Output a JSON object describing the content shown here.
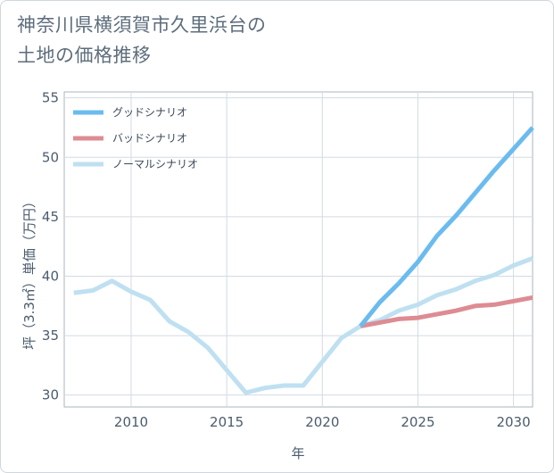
{
  "title_lines": [
    "神奈川県横須賀市久里浜台の",
    "土地の価格推移"
  ],
  "chart_data": {
    "type": "line",
    "title": "神奈川県横須賀市久里浜台の土地の価格推移",
    "xlabel": "年",
    "ylabel": "坪（3.3㎡）単価（万円）",
    "xlim": [
      2006.5,
      2031
    ],
    "ylim": [
      29,
      55.5
    ],
    "xticks": [
      2010,
      2015,
      2020,
      2025,
      2030
    ],
    "yticks": [
      30,
      35,
      40,
      45,
      50,
      55
    ],
    "grid": true,
    "legend_position": "top-left",
    "series": [
      {
        "name": "グッドシナリオ",
        "color": "#6bbbef",
        "x": [
          2022,
          2023,
          2024,
          2025,
          2026,
          2027,
          2028,
          2029,
          2030,
          2031
        ],
        "y": [
          35.8,
          37.8,
          39.4,
          41.2,
          43.4,
          45.1,
          47.0,
          48.9,
          50.7,
          52.5
        ]
      },
      {
        "name": "バッドシナリオ",
        "color": "#dd8c93",
        "x": [
          2022,
          2023,
          2024,
          2025,
          2026,
          2027,
          2028,
          2029,
          2030,
          2031
        ],
        "y": [
          35.8,
          36.1,
          36.4,
          36.5,
          36.8,
          37.1,
          37.5,
          37.6,
          37.9,
          38.2
        ]
      },
      {
        "name": "ノーマルシナリオ",
        "color": "#bfe0f1",
        "x": [
          2007,
          2008,
          2009,
          2010,
          2011,
          2012,
          2013,
          2014,
          2015,
          2016,
          2017,
          2018,
          2019,
          2020,
          2021,
          2022,
          2023,
          2024,
          2025,
          2026,
          2027,
          2028,
          2029,
          2030,
          2031
        ],
        "y": [
          38.6,
          38.8,
          39.6,
          38.7,
          38.0,
          36.2,
          35.3,
          34.0,
          32.1,
          30.2,
          30.6,
          30.8,
          30.8,
          32.8,
          34.8,
          35.8,
          36.3,
          37.1,
          37.6,
          38.4,
          38.9,
          39.6,
          40.1,
          40.9,
          41.5
        ]
      }
    ]
  }
}
